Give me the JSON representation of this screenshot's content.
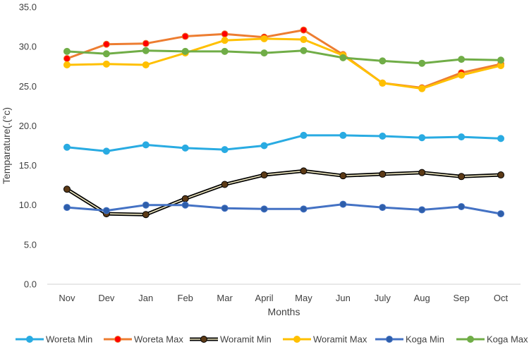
{
  "chart_data": {
    "type": "line",
    "title": "",
    "xlabel": "Months",
    "ylabel": "Temparature(.(°c)",
    "ylim": [
      0,
      35
    ],
    "ytick_step": 5,
    "ytick_labels": [
      "0.0",
      "5.0",
      "10.0",
      "15.0",
      "20.0",
      "25.0",
      "30.0",
      "35.0"
    ],
    "grid": false,
    "legend_position": "bottom",
    "categories": [
      "Nov",
      "Dev",
      "Jan",
      "Feb",
      "Mar",
      "April",
      "May",
      "Jun",
      "July",
      "Aug",
      "Sep",
      "Oct"
    ],
    "series": [
      {
        "name": "Woreta Min",
        "color": "#29ABE2",
        "marker_color": "#29ABE2",
        "outline": false,
        "values": [
          17.3,
          16.8,
          17.6,
          17.2,
          17.0,
          17.5,
          18.8,
          18.8,
          18.7,
          18.5,
          18.6,
          18.4
        ]
      },
      {
        "name": "Woreta Max",
        "color": "#ED7D31",
        "marker_color": "#FF0000",
        "outline": false,
        "values": [
          28.5,
          30.3,
          30.4,
          31.3,
          31.6,
          31.2,
          32.1,
          29.0,
          25.4,
          24.8,
          26.7,
          27.8
        ]
      },
      {
        "name": "Woramit Min",
        "color": "#5C3A16",
        "marker_color": "#5C3A16",
        "outline": true,
        "values": [
          12.0,
          8.9,
          8.8,
          10.8,
          12.6,
          13.8,
          14.3,
          13.7,
          13.9,
          14.1,
          13.6,
          13.8
        ]
      },
      {
        "name": "Woramit Max",
        "color": "#FFC000",
        "marker_color": "#FFC000",
        "outline": false,
        "values": [
          27.7,
          27.8,
          27.7,
          29.2,
          30.8,
          31.0,
          30.9,
          28.9,
          25.4,
          24.7,
          26.4,
          27.6
        ]
      },
      {
        "name": "Koga Min",
        "color": "#4472C4",
        "marker_color": "#2E5EAA",
        "outline": false,
        "values": [
          9.7,
          9.3,
          10.0,
          10.0,
          9.6,
          9.5,
          9.5,
          10.1,
          9.7,
          9.4,
          9.8,
          8.9
        ]
      },
      {
        "name": "Koga Max",
        "color": "#70AD47",
        "marker_color": "#70AD47",
        "outline": false,
        "values": [
          29.4,
          29.1,
          29.5,
          29.4,
          29.4,
          29.2,
          29.5,
          28.6,
          28.2,
          27.9,
          28.4,
          28.3
        ]
      }
    ]
  }
}
